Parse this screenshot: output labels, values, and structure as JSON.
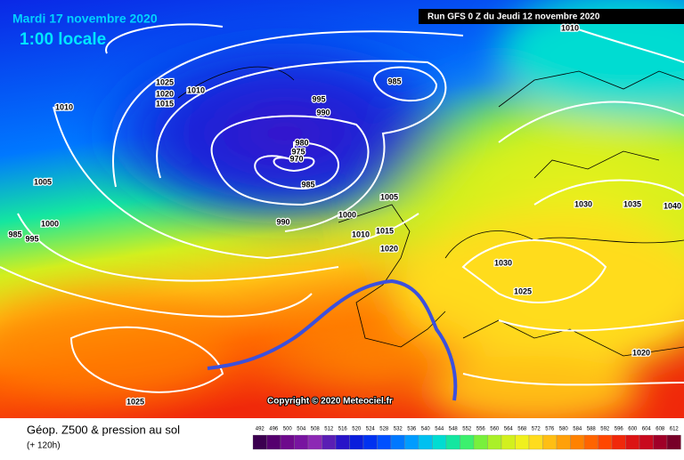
{
  "header": {
    "date": "Mardi 17 novembre 2020",
    "time": "1:00 locale",
    "run": "Run GFS 0 Z du Jeudi 12 novembre 2020"
  },
  "copyright": "Copyright © 2020 Meteociel.fr",
  "footer": {
    "title": "Géop. Z500 & pression au sol",
    "lead": "(+ 120h)"
  },
  "isobar_labels": [
    1010,
    1025,
    1020,
    1015,
    1010,
    1010,
    985,
    995,
    990,
    980,
    975,
    970,
    985,
    1005,
    1005,
    990,
    1000,
    1030,
    1035,
    1040,
    1000,
    985,
    995,
    1010,
    1015,
    1020,
    1030,
    1025,
    1020,
    1025
  ],
  "legend": {
    "labels": [
      492,
      496,
      500,
      504,
      508,
      512,
      516,
      520,
      524,
      528,
      532,
      536,
      540,
      544,
      548,
      552,
      556,
      560,
      564,
      568,
      572,
      576,
      580,
      584,
      588,
      592,
      596,
      600,
      604,
      608,
      612
    ],
    "colors": [
      "#3c0050",
      "#55006e",
      "#6e0a8c",
      "#7814a0",
      "#8c28b4",
      "#5a1eb4",
      "#2814c8",
      "#0a1edc",
      "#0032f0",
      "#0050ff",
      "#0078ff",
      "#009cff",
      "#00c0f0",
      "#00dcd2",
      "#14e6a0",
      "#3cf06e",
      "#78f03c",
      "#aaf028",
      "#d2f01e",
      "#f0f01e",
      "#ffdc1e",
      "#ffbe14",
      "#ffa00a",
      "#ff8200",
      "#ff6400",
      "#ff4600",
      "#f0280a",
      "#dc1414",
      "#c80a1e",
      "#a00028",
      "#780028"
    ]
  }
}
